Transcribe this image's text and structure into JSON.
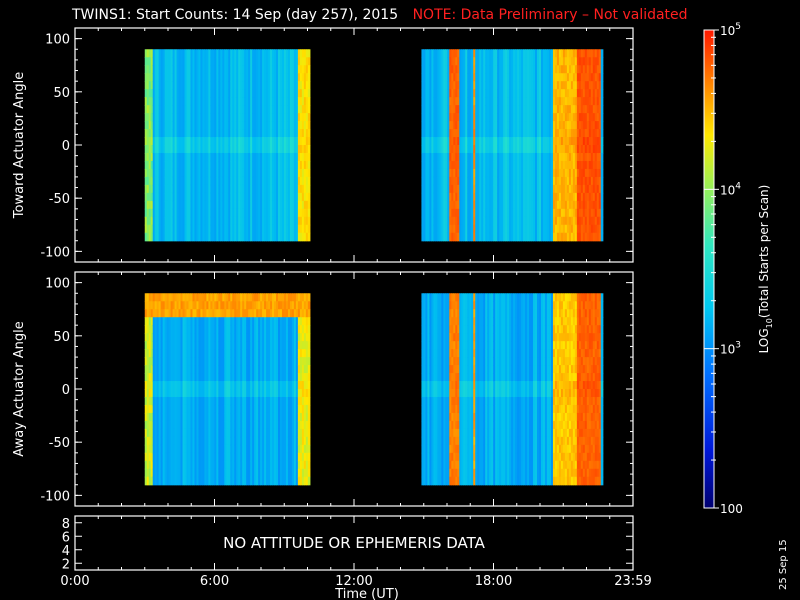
{
  "title": "TWINS1: Start Counts: 14 Sep (day 257), 2015",
  "note": "NOTE: Data Preliminary – Not validated",
  "note_color": "#ff2020",
  "stamp": "25 Sep 15",
  "no_data_text": "NO ATTITUDE OR EPHEMERIS DATA",
  "chart_data": {
    "type": "heatmap",
    "xlabel": "Time (UT)",
    "x_ticks": [
      "0:00",
      "6:00",
      "12:00",
      "18:00",
      "23:59"
    ],
    "x_range_hours": [
      0,
      24
    ],
    "data_intervals_hours": [
      [
        3.0,
        10.1
      ],
      [
        14.9,
        22.7
      ]
    ],
    "panels": [
      {
        "ylabel": "Toward Actuator Angle",
        "ylim": [
          -110,
          110
        ],
        "y_ticks": [
          100,
          50,
          0,
          -50,
          -100
        ],
        "y_range_data": [
          -90,
          90
        ],
        "base_log10": 2.95,
        "features": [
          {
            "t_hours": [
              3.0,
              3.3
            ],
            "log10": 3.4
          },
          {
            "t_hours": [
              9.6,
              10.1
            ],
            "log10": 3.8
          },
          {
            "t_hours": [
              16.1,
              16.5
            ],
            "log10": 4.5
          },
          {
            "t_hours": [
              17.1,
              17.2
            ],
            "log10": 4.2
          },
          {
            "t_hours": [
              20.6,
              21.6
            ],
            "log10": 4.0
          },
          {
            "t_hours": [
              21.6,
              22.6
            ],
            "log10": 4.6
          }
        ]
      },
      {
        "ylabel": "Away Actuator Angle",
        "ylim": [
          -110,
          110
        ],
        "y_ticks": [
          100,
          50,
          0,
          -50,
          -100
        ],
        "y_range_data": [
          -90,
          90
        ],
        "base_log10": 2.9,
        "features": [
          {
            "angle_range": [
              65,
              90
            ],
            "t_hours": [
              3.0,
              10.1
            ],
            "log10": 4.1
          },
          {
            "t_hours": [
              3.0,
              3.3
            ],
            "log10": 3.6
          },
          {
            "t_hours": [
              9.6,
              10.1
            ],
            "log10": 3.7
          },
          {
            "t_hours": [
              16.1,
              16.5
            ],
            "log10": 4.3
          },
          {
            "t_hours": [
              17.1,
              17.2
            ],
            "log10": 4.1
          },
          {
            "t_hours": [
              20.6,
              21.6
            ],
            "log10": 3.9
          },
          {
            "t_hours": [
              21.6,
              22.6
            ],
            "log10": 4.5
          }
        ]
      },
      {
        "ylabel": "",
        "ylim": [
          1,
          9
        ],
        "y_ticks": [
          8,
          6,
          4,
          2
        ],
        "no_data": true
      }
    ],
    "colorbar": {
      "label": "LOG10(Total Starts per Scan)",
      "label_prefix": "LOG",
      "label_sub": "10",
      "label_suffix": "(Total Starts per Scan)",
      "range_log10": [
        2,
        5
      ],
      "ticks": [
        {
          "value": 5,
          "text": "10",
          "sup": "5"
        },
        {
          "value": 4,
          "text": "10",
          "sup": "4"
        },
        {
          "value": 3,
          "text": "10",
          "sup": "3"
        },
        {
          "value": 2,
          "text": "100",
          "sup": ""
        }
      ]
    }
  }
}
